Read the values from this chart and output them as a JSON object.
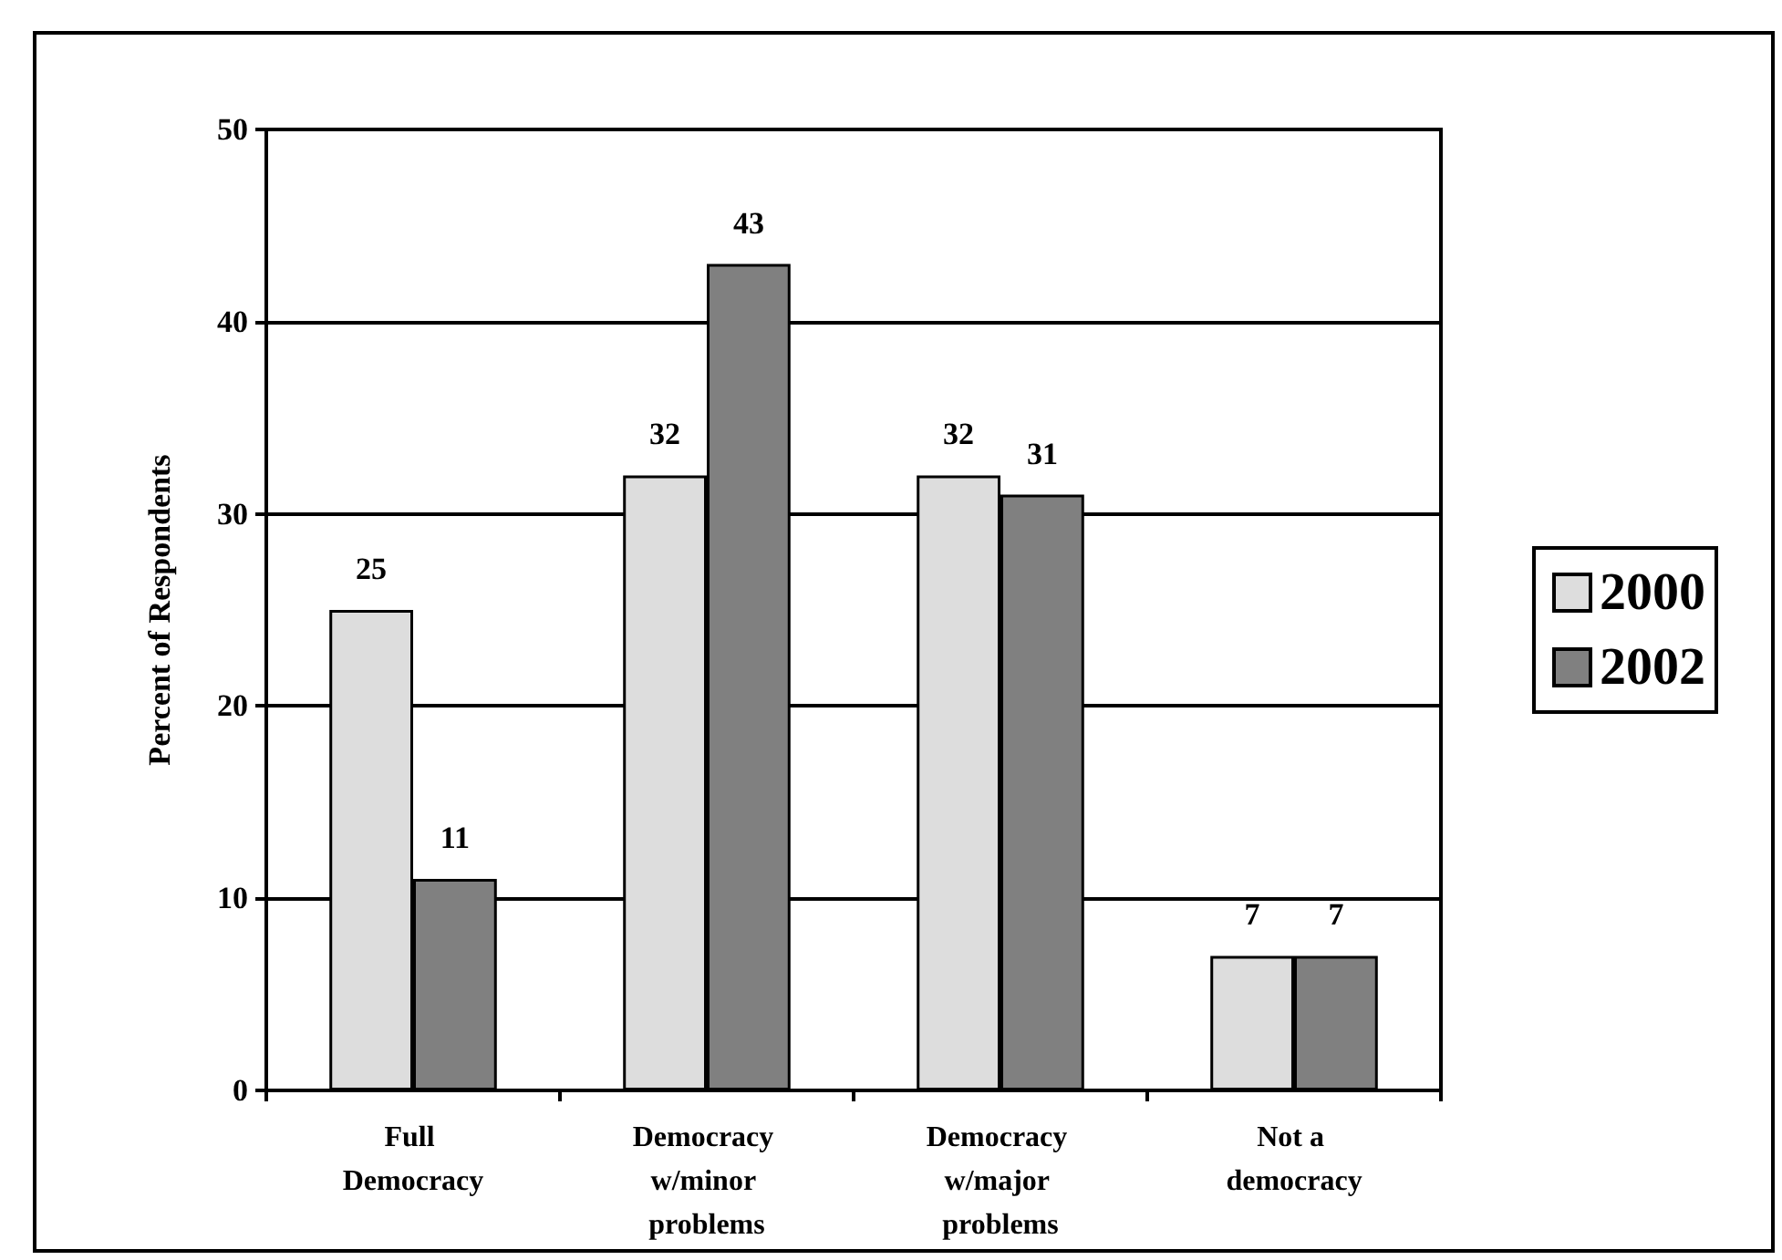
{
  "chart_data": {
    "type": "bar",
    "ylabel": "Percent of Respondents",
    "categories": [
      "Full Democracy",
      "Democracy w/minor problems",
      "Democracy w/major problems",
      "Not a democracy"
    ],
    "series": [
      {
        "name": "2000",
        "color": "#dddddd",
        "values": [
          25,
          32,
          32,
          7
        ]
      },
      {
        "name": "2002",
        "color": "#808080",
        "values": [
          11,
          43,
          31,
          7
        ]
      }
    ],
    "ylim": [
      0,
      50
    ],
    "yticks": [
      0,
      10,
      20,
      30,
      40,
      50
    ],
    "grid": "y",
    "legend": "right",
    "data_labels": true
  }
}
